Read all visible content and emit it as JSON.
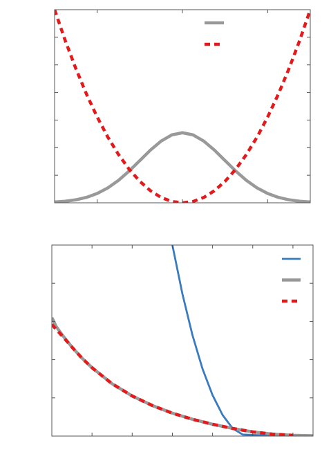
{
  "chart_data": [
    {
      "type": "line",
      "xlim": [
        -3,
        3
      ],
      "ylim": [
        0,
        1.4
      ],
      "legend_placement": "top-center",
      "grid": false,
      "series": [
        {
          "color": "#999999",
          "line_style": "solid",
          "x": [
            -3,
            -2.75,
            -2.5,
            -2.25,
            -2,
            -1.75,
            -1.5,
            -1.25,
            -1,
            -0.75,
            -0.5,
            -0.25,
            0,
            0.25,
            0.5,
            0.75,
            1,
            1.25,
            1.5,
            1.75,
            2,
            2.25,
            2.5,
            2.75,
            3
          ],
          "y": [
            0.0056,
            0.0114,
            0.0219,
            0.0397,
            0.0677,
            0.1082,
            0.1629,
            0.2305,
            0.3063,
            0.3822,
            0.4477,
            0.4923,
            0.508,
            0.4923,
            0.4477,
            0.3822,
            0.3063,
            0.2305,
            0.1629,
            0.1082,
            0.0677,
            0.0397,
            0.0219,
            0.0114,
            0.0056
          ]
        },
        {
          "color": "#e31a1c",
          "line_style": "dashed",
          "x": [
            -3,
            -2.75,
            -2.5,
            -2.25,
            -2,
            -1.75,
            -1.5,
            -1.25,
            -1,
            -0.75,
            -0.5,
            -0.25,
            0,
            0.25,
            0.5,
            0.75,
            1,
            1.25,
            1.5,
            1.75,
            2,
            2.25,
            2.5,
            2.75,
            3
          ],
          "y": [
            1.4,
            1.176,
            0.972,
            0.787,
            0.622,
            0.476,
            0.35,
            0.243,
            0.156,
            0.0875,
            0.0389,
            0.0097,
            0,
            0.0097,
            0.0389,
            0.0875,
            0.156,
            0.243,
            0.35,
            0.476,
            0.622,
            0.787,
            0.972,
            1.176,
            1.4
          ]
        }
      ]
    },
    {
      "type": "line",
      "xlim": [
        0,
        6.5
      ],
      "ylim": [
        0,
        5
      ],
      "legend_placement": "top-right",
      "grid": false,
      "series": [
        {
          "color": "#3a7bbf",
          "line_style": "solid",
          "x": [
            3.0,
            3.25,
            3.5,
            3.75,
            4.0,
            4.25,
            4.5,
            4.75,
            5.0,
            5.25,
            5.5,
            5.75,
            6.0
          ],
          "y": [
            5.0,
            3.72,
            2.64,
            1.76,
            1.07,
            0.55,
            0.2,
            0.04,
            0.03,
            0.02,
            0.015,
            0.01,
            0.006
          ]
        },
        {
          "color": "#999999",
          "line_style": "solid",
          "x": [
            0,
            0.05,
            0.1,
            0.25,
            0.5,
            0.75,
            1.0,
            1.5,
            2.0,
            2.5,
            3.0,
            3.5,
            4.0,
            4.5,
            5.0,
            5.5,
            6.0,
            6.5
          ],
          "y": [
            3.1,
            3.0,
            2.88,
            2.66,
            2.33,
            2.04,
            1.79,
            1.37,
            1.05,
            0.8,
            0.6,
            0.44,
            0.31,
            0.2,
            0.11,
            0.05,
            0.02,
            0.008
          ]
        },
        {
          "color": "#e31a1c",
          "line_style": "dashed",
          "x": [
            0,
            0.25,
            0.5,
            0.75,
            1.0,
            1.5,
            2.0,
            2.5,
            3.0,
            3.5,
            4.0,
            4.5,
            5.0,
            5.5,
            6.0
          ],
          "y": [
            2.92,
            2.63,
            2.33,
            2.04,
            1.79,
            1.37,
            1.05,
            0.8,
            0.6,
            0.44,
            0.31,
            0.2,
            0.11,
            0.05,
            0.02
          ]
        }
      ]
    }
  ]
}
